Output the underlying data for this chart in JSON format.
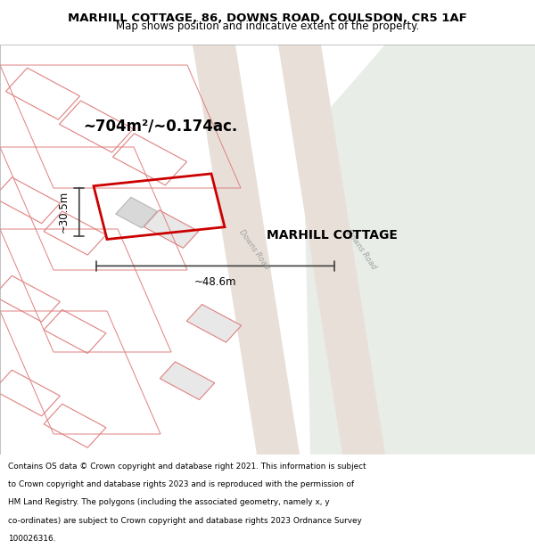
{
  "title_line1": "MARHILL COTTAGE, 86, DOWNS ROAD, COULSDON, CR5 1AF",
  "title_line2": "Map shows position and indicative extent of the property.",
  "area_label": "~704m²/~0.174ac.",
  "width_label": "~48.6m",
  "height_label": "~30.5m",
  "property_label": "MARHILL COTTAGE",
  "footer_text": "Contains OS data © Crown copyright and database right 2021. This information is subject to Crown copyright and database rights 2023 and is reproduced with the permission of HM Land Registry. The polygons (including the associated geometry, namely x, y co-ordinates) are subject to Crown copyright and database rights 2023 Ordnance Survey 100026316.",
  "bg_color": "#f5f5f0",
  "map_bg": "#ffffff",
  "green_area_color": "#e8ede8",
  "road_color": "#e8ddd8",
  "plot_outline_color": "#cc0000",
  "building_fill": "#d8d8d8",
  "building_outline": "#c0b0b0",
  "road_label_color": "#a0a0a0",
  "dim_line_color": "#404040",
  "title_color": "#000000",
  "footer_color": "#000000"
}
